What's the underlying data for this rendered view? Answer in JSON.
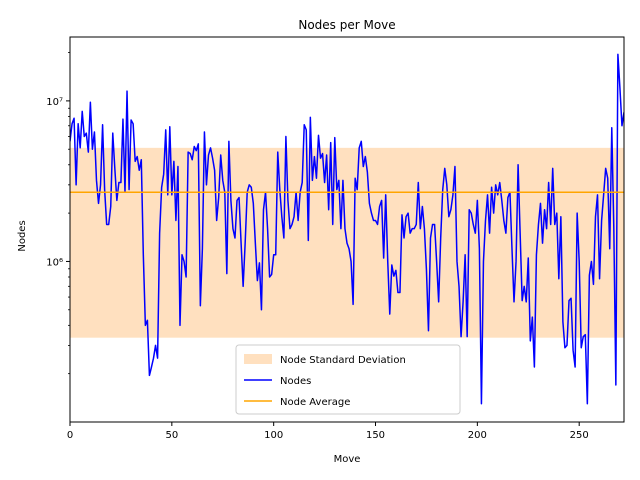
{
  "chart_data": {
    "type": "line",
    "title": "Nodes per Move",
    "xlabel": "Move",
    "ylabel": "Nodes",
    "xlim": [
      0,
      272
    ],
    "ylim": [
      100000,
      25000000
    ],
    "yscale": "log",
    "x_ticks": [
      0,
      50,
      100,
      150,
      200,
      250
    ],
    "y_ticks": [
      {
        "value": 1000000,
        "label": "10⁶"
      },
      {
        "value": 10000000,
        "label": "10⁷"
      }
    ],
    "grid": false,
    "legend_position": "lower-center",
    "colors": {
      "band": "#ffe0bf",
      "line": "#0000ff",
      "average": "#ffa500"
    },
    "legend": [
      {
        "label": "Node Standard Deviation",
        "kind": "band"
      },
      {
        "label": "Nodes",
        "kind": "line"
      },
      {
        "label": "Node Average",
        "kind": "average"
      }
    ],
    "average": 2700000,
    "std_band": [
      335000,
      5100000
    ],
    "series": [
      {
        "name": "Nodes",
        "y": [
          5600000,
          7200000,
          7800000,
          3000000,
          7200000,
          5100000,
          8600000,
          6000000,
          6300000,
          4800000,
          9800000,
          5000000,
          6400000,
          3200000,
          2300000,
          3000000,
          7100000,
          2800000,
          1700000,
          1700000,
          2200000,
          6300000,
          3800000,
          2400000,
          3100000,
          3100000,
          7700000,
          2700000,
          11500000,
          2800000,
          7600000,
          7200000,
          4200000,
          4500000,
          3700000,
          4300000,
          1100000,
          400000,
          430000,
          195000,
          220000,
          250000,
          300000,
          250000,
          1500000,
          2900000,
          3500000,
          6600000,
          2600000,
          6900000,
          2600000,
          4200000,
          1800000,
          3900000,
          400000,
          1100000,
          1000000,
          800000,
          4800000,
          4700000,
          4300000,
          5200000,
          4900000,
          5400000,
          530000,
          1200000,
          6400000,
          3000000,
          4600000,
          5100000,
          4400000,
          3700000,
          1800000,
          2500000,
          4600000,
          3200000,
          2700000,
          840000,
          5600000,
          2400000,
          1600000,
          1400000,
          2400000,
          2500000,
          1300000,
          700000,
          1300000,
          2700000,
          3000000,
          2900000,
          2300000,
          1300000,
          760000,
          980000,
          500000,
          2100000,
          2700000,
          1600000,
          800000,
          830000,
          1100000,
          1100000,
          4800000,
          2800000,
          1900000,
          1400000,
          6000000,
          2400000,
          1600000,
          1700000,
          1900000,
          2700000,
          1800000,
          2700000,
          3100000,
          7100000,
          6600000,
          1350000,
          7900000,
          3200000,
          4500000,
          3300000,
          6100000,
          4400000,
          4700000,
          3100000,
          4600000,
          2100000,
          5500000,
          1700000,
          5900000,
          2800000,
          3200000,
          1600000,
          3200000,
          1600000,
          1300000,
          1200000,
          1000000,
          540000,
          3300000,
          2800000,
          5100000,
          5600000,
          3900000,
          4500000,
          3600000,
          2300000,
          2000000,
          1800000,
          1800000,
          1700000,
          2200000,
          2400000,
          1050000,
          2600000,
          1000000,
          470000,
          950000,
          810000,
          880000,
          640000,
          640000,
          1950000,
          1400000,
          1900000,
          2000000,
          1500000,
          1600000,
          1600000,
          1700000,
          3100000,
          1600000,
          2200000,
          1600000,
          890000,
          370000,
          1400000,
          1700000,
          1700000,
          1000000,
          560000,
          1400000,
          2800000,
          3800000,
          3000000,
          1900000,
          2100000,
          2600000,
          3900000,
          1000000,
          700000,
          340000,
          560000,
          1100000,
          340000,
          2100000,
          2000000,
          1700000,
          1500000,
          2400000,
          1200000,
          130000,
          1000000,
          1800000,
          2600000,
          1500000,
          2900000,
          2000000,
          3000000,
          2600000,
          3100000,
          2400000,
          1800000,
          1500000,
          2500000,
          2700000,
          1200000,
          560000,
          1000000,
          4000000,
          1500000,
          570000,
          700000,
          560000,
          1050000,
          320000,
          450000,
          220000,
          1100000,
          1700000,
          2300000,
          1300000,
          2100000,
          1600000,
          3100000,
          1700000,
          3800000,
          1700000,
          2000000,
          780000,
          1900000,
          420000,
          290000,
          300000,
          570000,
          590000,
          280000,
          220000,
          2000000,
          1000000,
          290000,
          340000,
          350000,
          130000,
          820000,
          1000000,
          720000,
          1900000,
          2600000,
          780000,
          1800000,
          2600000,
          3800000,
          3300000,
          1200000,
          6800000,
          1600000,
          170000,
          19500000,
          12000000,
          7000000,
          8500000
        ]
      }
    ]
  }
}
